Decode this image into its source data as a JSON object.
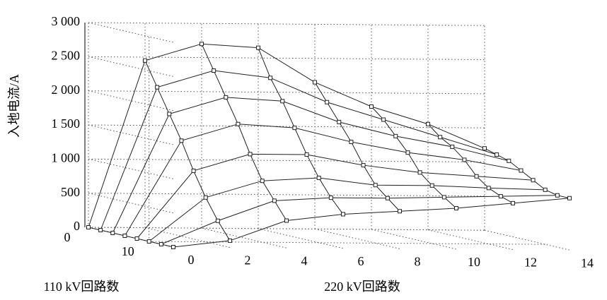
{
  "chart_data": {
    "type": "surface",
    "ylabel_z": "入地电流/A",
    "xlabel": "220 kV回路数",
    "ylabel": "110 kV回路数",
    "x": [
      0,
      2,
      4,
      6,
      8,
      10,
      12,
      14
    ],
    "y": [
      0,
      2,
      4,
      6,
      8,
      10,
      12,
      14
    ],
    "z": [
      [
        0,
        2450,
        2700,
        2650,
        2150,
        1800,
        1550,
        1200
      ],
      [
        0,
        2100,
        2350,
        2250,
        1900,
        1650,
        1400,
        1150
      ],
      [
        0,
        1750,
        2000,
        1950,
        1650,
        1450,
        1300,
        1100
      ],
      [
        0,
        1400,
        1650,
        1600,
        1400,
        1250,
        1150,
        1000
      ],
      [
        0,
        1000,
        1250,
        1250,
        1100,
        1000,
        950,
        900
      ],
      [
        0,
        650,
        900,
        950,
        850,
        850,
        820,
        800
      ],
      [
        0,
        350,
        650,
        700,
        700,
        720,
        740,
        760
      ],
      [
        0,
        100,
        400,
        500,
        550,
        600,
        680,
        760
      ]
    ],
    "xlim": [
      0,
      14
    ],
    "ylim": [
      0,
      14
    ],
    "zlim": [
      0,
      3000
    ],
    "xticks": [
      0,
      2,
      4,
      6,
      8,
      10,
      12,
      14
    ],
    "yticks": [
      0,
      10
    ],
    "zticks": [
      0,
      500,
      {
        "value": 1000,
        "label": "1 000"
      },
      {
        "value": 1500,
        "label": "1 500"
      },
      {
        "value": 2000,
        "label": "2 000"
      },
      {
        "value": 2500,
        "label": "2 500"
      },
      {
        "value": 3000,
        "label": "3 000"
      }
    ],
    "grid": true
  }
}
